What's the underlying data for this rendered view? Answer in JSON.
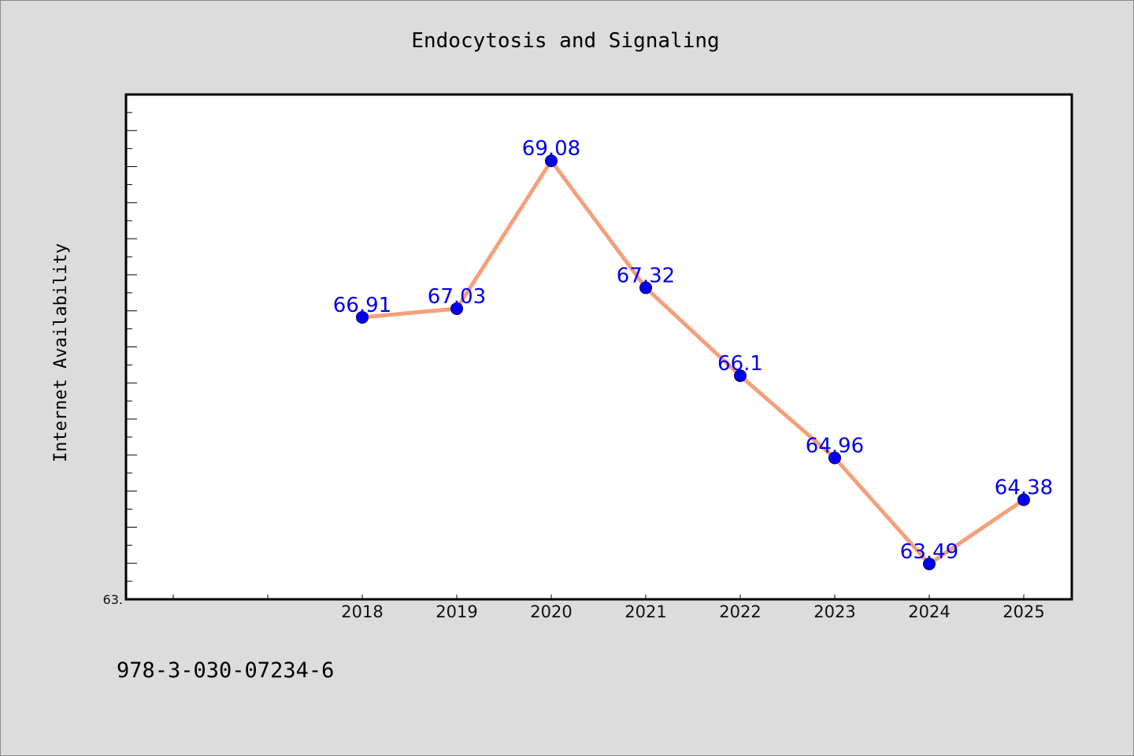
{
  "chart_data": {
    "type": "line",
    "title": "Endocytosis and Signaling",
    "xlabel": "",
    "ylabel": "Internet Availability",
    "categories": [
      "2018",
      "2019",
      "2020",
      "2021",
      "2022",
      "2023",
      "2024",
      "2025"
    ],
    "series": [
      {
        "name": "",
        "values": [
          66.91,
          67.03,
          69.08,
          67.32,
          66.1,
          64.96,
          63.49,
          64.38
        ],
        "labels": [
          "66.91",
          "67.03",
          "69.08",
          "67.32",
          "66.1",
          "64.96",
          "63.49",
          "64.38"
        ]
      }
    ],
    "ylim": [
      63.0,
      70.0
    ],
    "ytick_label": "63.",
    "grid": false,
    "legend": "none",
    "colors": {
      "line": "#f4a07c",
      "marker": "#0000ee",
      "label": "#0000ee",
      "background": "#dcdcdc",
      "plot_background": "#ffffff"
    }
  },
  "footer": {
    "code": "978-3-030-07234-6"
  }
}
